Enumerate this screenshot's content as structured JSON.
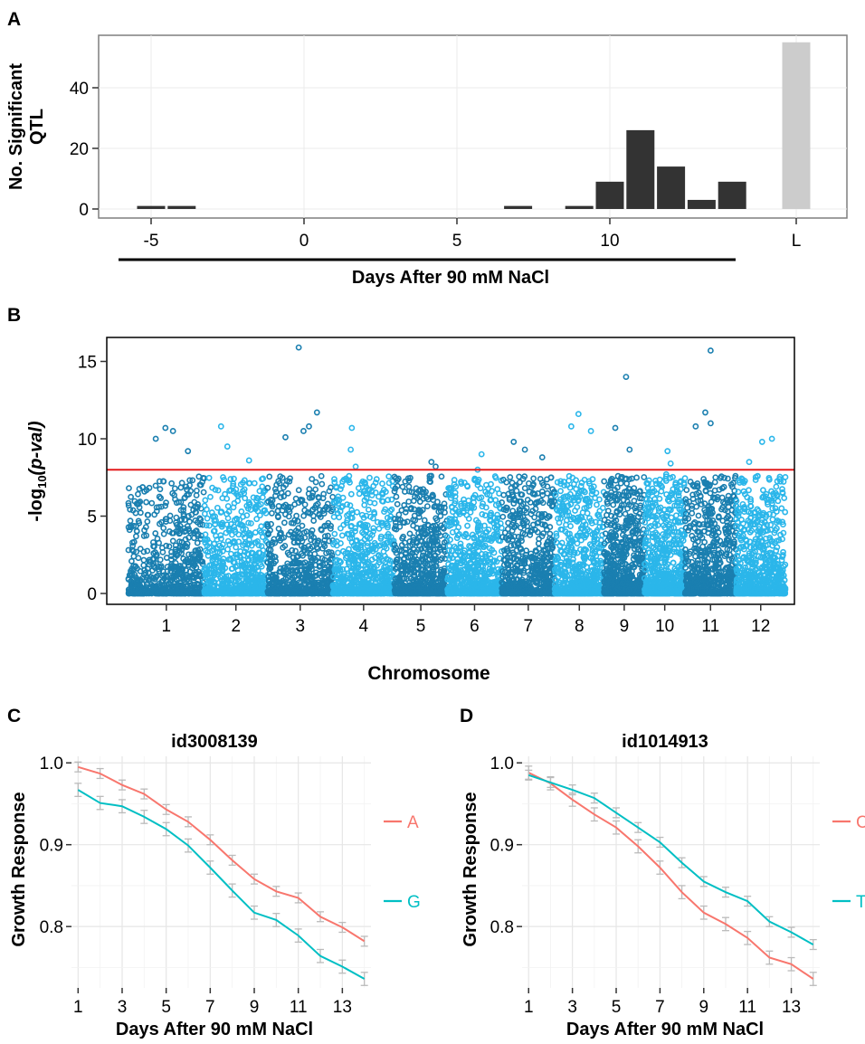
{
  "colors": {
    "bar_dark": "#333333",
    "bar_light": "#cccccc",
    "threshold": "#e31a1c",
    "chr_dark": "#1a7fb0",
    "chr_light": "#2bb6ea",
    "allele_a": "#f8766d",
    "allele_b": "#00bfc4",
    "grid": "#ebebeb",
    "errbar": "#bbbbbb"
  },
  "chart_data": [
    {
      "panel": "A",
      "type": "bar",
      "title": "",
      "ylabel_line1": "No. Significant",
      "ylabel_line2": "QTL",
      "xlabel": "Days After 90 mM NaCl",
      "ylim": [
        0,
        57
      ],
      "yticks": [
        0,
        20,
        40
      ],
      "xticks": [
        "-5",
        "0",
        "5",
        "10",
        "L"
      ],
      "grid": true,
      "bars": [
        {
          "day": -5,
          "value": 1
        },
        {
          "day": -4,
          "value": 1
        },
        {
          "day": 7,
          "value": 1
        },
        {
          "day": 9,
          "value": 1
        },
        {
          "day": 10,
          "value": 9
        },
        {
          "day": 11,
          "value": 26
        },
        {
          "day": 12,
          "value": 14
        },
        {
          "day": 13,
          "value": 3
        },
        {
          "day": 14,
          "value": 9
        }
      ],
      "L_value": 55
    },
    {
      "panel": "B",
      "type": "scatter",
      "title": "",
      "ylabel_pre": "-log",
      "ylabel_sub": "10",
      "ylabel_post": "(p-val)",
      "xlabel": "Chromosome",
      "ylim": [
        0,
        16.5
      ],
      "yticks": [
        0,
        5,
        10,
        15
      ],
      "threshold": 8,
      "grid": false,
      "chromosomes": [
        {
          "label": "1",
          "start": 0,
          "end": 43,
          "peaks": [
            10.7,
            10.5,
            10.0,
            9.2
          ]
        },
        {
          "label": "2",
          "start": 43,
          "end": 79,
          "peaks": [
            10.8,
            9.5,
            8.6
          ]
        },
        {
          "label": "3",
          "start": 79,
          "end": 116,
          "peaks": [
            15.9,
            11.7,
            10.8,
            10.5,
            10.1
          ]
        },
        {
          "label": "4",
          "start": 116,
          "end": 151,
          "peaks": [
            10.7,
            9.3,
            8.2
          ]
        },
        {
          "label": "5",
          "start": 151,
          "end": 181,
          "peaks": [
            8.5,
            8.2,
            7.6
          ]
        },
        {
          "label": "6",
          "start": 181,
          "end": 212,
          "peaks": [
            9.0,
            8.0,
            7.1
          ]
        },
        {
          "label": "7",
          "start": 212,
          "end": 242,
          "peaks": [
            9.8,
            9.3,
            8.8
          ]
        },
        {
          "label": "8",
          "start": 242,
          "end": 270,
          "peaks": [
            11.6,
            10.8,
            10.5
          ]
        },
        {
          "label": "9",
          "start": 270,
          "end": 293,
          "peaks": [
            14.0,
            10.7,
            9.3
          ]
        },
        {
          "label": "10",
          "start": 293,
          "end": 316,
          "peaks": [
            9.2,
            8.4,
            7.7
          ]
        },
        {
          "label": "11",
          "start": 316,
          "end": 345,
          "peaks": [
            15.7,
            11.7,
            11.0,
            10.8
          ]
        },
        {
          "label": "12",
          "start": 345,
          "end": 373,
          "peaks": [
            10.0,
            9.8,
            8.5
          ]
        }
      ]
    },
    {
      "panel": "C",
      "type": "line",
      "title": "id3008139",
      "xlabel": "Days After 90 mM NaCl",
      "ylabel": "Growth Response",
      "xlim": [
        0.7,
        14.3
      ],
      "ylim": [
        0.725,
        1.008
      ],
      "xticks": [
        1,
        3,
        5,
        7,
        9,
        11,
        13
      ],
      "yticks": [
        0.8,
        0.9,
        1.0
      ],
      "ytick_labels": [
        "0.8",
        "0.9",
        "1.0"
      ],
      "grid": true,
      "legend": "right",
      "x": [
        1,
        2,
        3,
        4,
        5,
        6,
        7,
        8,
        9,
        10,
        11,
        12,
        13,
        14
      ],
      "series": [
        {
          "name": "A",
          "values": [
            0.995,
            0.987,
            0.973,
            0.962,
            0.943,
            0.928,
            0.906,
            0.881,
            0.858,
            0.843,
            0.835,
            0.812,
            0.799,
            0.782
          ],
          "err": 0.006
        },
        {
          "name": "G",
          "values": [
            0.967,
            0.951,
            0.947,
            0.934,
            0.919,
            0.899,
            0.872,
            0.844,
            0.817,
            0.808,
            0.789,
            0.764,
            0.751,
            0.736
          ],
          "err": 0.008
        }
      ]
    },
    {
      "panel": "D",
      "type": "line",
      "title": "id1014913",
      "xlabel": "Days After 90 mM NaCl",
      "ylabel": "Growth Response",
      "xlim": [
        0.7,
        14.3
      ],
      "ylim": [
        0.725,
        1.008
      ],
      "xticks": [
        1,
        3,
        5,
        7,
        9,
        11,
        13
      ],
      "yticks": [
        0.8,
        0.9,
        1.0
      ],
      "ytick_labels": [
        "0.8",
        "0.9",
        "1.0"
      ],
      "grid": true,
      "legend": "right",
      "x": [
        1,
        2,
        3,
        4,
        5,
        6,
        7,
        8,
        9,
        10,
        11,
        12,
        13,
        14
      ],
      "series": [
        {
          "name": "C",
          "values": [
            0.988,
            0.975,
            0.955,
            0.937,
            0.921,
            0.898,
            0.872,
            0.842,
            0.817,
            0.803,
            0.786,
            0.762,
            0.754,
            0.736
          ],
          "err": 0.008
        },
        {
          "name": "T",
          "values": [
            0.985,
            0.976,
            0.967,
            0.957,
            0.939,
            0.921,
            0.903,
            0.878,
            0.855,
            0.842,
            0.831,
            0.806,
            0.793,
            0.778
          ],
          "err": 0.006
        }
      ]
    }
  ],
  "panel_letters": [
    "A",
    "B",
    "C",
    "D"
  ]
}
